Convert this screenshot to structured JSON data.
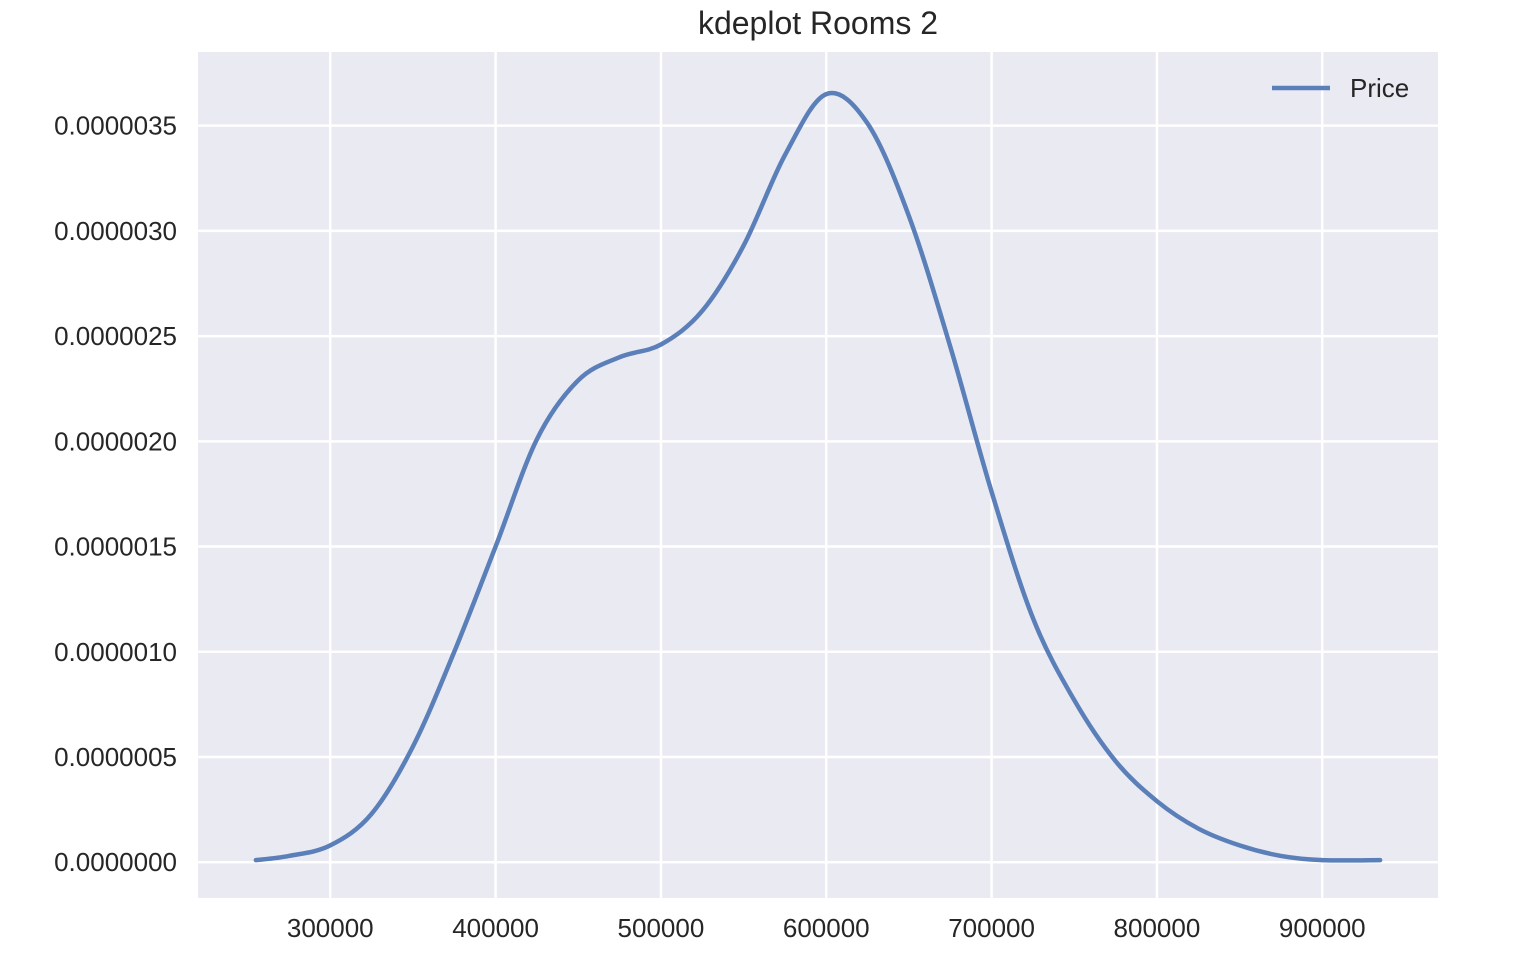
{
  "chart_data": {
    "type": "line",
    "title": "kdeplot Rooms 2",
    "xlabel": "",
    "ylabel": "",
    "xlim": [
      220000,
      970000
    ],
    "ylim": [
      -1.7e-07,
      3.85e-06
    ],
    "x_ticks": [
      300000,
      400000,
      500000,
      600000,
      700000,
      800000,
      900000
    ],
    "x_tick_labels": [
      "300000",
      "400000",
      "500000",
      "600000",
      "700000",
      "800000",
      "900000"
    ],
    "y_ticks": [
      0,
      5e-07,
      1e-06,
      1.5e-06,
      2e-06,
      2.5e-06,
      3e-06,
      3.5e-06
    ],
    "y_tick_labels": [
      "0.0000000",
      "0.0000005",
      "0.0000010",
      "0.0000015",
      "0.0000020",
      "0.0000025",
      "0.0000030",
      "0.0000035"
    ],
    "grid": true,
    "legend_position": "top-right",
    "background_color": "#eaeaf2",
    "grid_color": "#ffffff",
    "series": [
      {
        "name": "Price",
        "color": "#5a7fb9",
        "x": [
          255000,
          275000,
          300000,
          325000,
          350000,
          375000,
          400000,
          425000,
          450000,
          475000,
          500000,
          525000,
          550000,
          575000,
          600000,
          625000,
          650000,
          675000,
          700000,
          725000,
          750000,
          775000,
          800000,
          825000,
          850000,
          875000,
          900000,
          935000
        ],
        "y": [
          1e-08,
          3e-08,
          8e-08,
          2.3e-07,
          5.5e-07,
          1e-06,
          1.5e-06,
          2.01e-06,
          2.29e-06,
          2.4e-06,
          2.46e-06,
          2.62e-06,
          2.93e-06,
          3.36e-06,
          3.65e-06,
          3.51e-06,
          3.07e-06,
          2.45e-06,
          1.76e-06,
          1.16e-06,
          7.7e-07,
          4.8e-07,
          2.9e-07,
          1.6e-07,
          8e-08,
          3e-08,
          1e-08,
          1e-08
        ]
      }
    ]
  }
}
